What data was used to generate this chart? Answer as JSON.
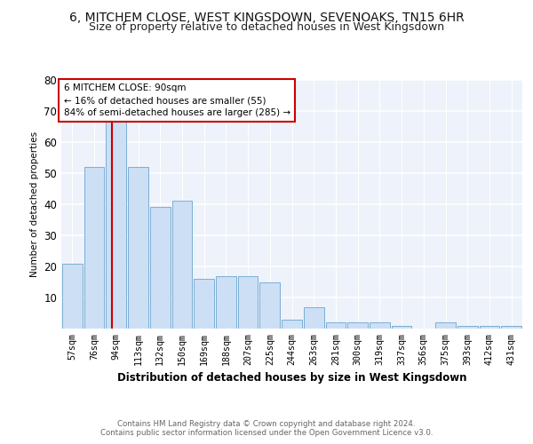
{
  "title1": "6, MITCHEM CLOSE, WEST KINGSDOWN, SEVENOAKS, TN15 6HR",
  "title2": "Size of property relative to detached houses in West Kingsdown",
  "xlabel": "Distribution of detached houses by size in West Kingsdown",
  "ylabel": "Number of detached properties",
  "categories": [
    "57sqm",
    "76sqm",
    "94sqm",
    "113sqm",
    "132sqm",
    "150sqm",
    "169sqm",
    "188sqm",
    "207sqm",
    "225sqm",
    "244sqm",
    "263sqm",
    "281sqm",
    "300sqm",
    "319sqm",
    "337sqm",
    "356sqm",
    "375sqm",
    "393sqm",
    "412sqm",
    "431sqm"
  ],
  "values": [
    21,
    52,
    67,
    52,
    39,
    41,
    16,
    17,
    17,
    15,
    3,
    7,
    2,
    2,
    2,
    1,
    0,
    2,
    1,
    1,
    1
  ],
  "bar_color": "#ccdff5",
  "bar_edge_color": "#7aafd4",
  "marker_label": "6 MITCHEM CLOSE: 90sqm",
  "annotation_line1": "← 16% of detached houses are smaller (55)",
  "annotation_line2": "84% of semi-detached houses are larger (285) →",
  "vline_color": "#cc0000",
  "annotation_box_color": "#ffffff",
  "annotation_box_edge": "#cc0000",
  "footer1": "Contains HM Land Registry data © Crown copyright and database right 2024.",
  "footer2": "Contains public sector information licensed under the Open Government Licence v3.0.",
  "ylim": [
    0,
    80
  ],
  "yticks": [
    0,
    10,
    20,
    30,
    40,
    50,
    60,
    70,
    80
  ],
  "bg_color": "#eef2fa",
  "title1_fontsize": 10,
  "title2_fontsize": 9,
  "vline_x_bar_index": 1.82
}
